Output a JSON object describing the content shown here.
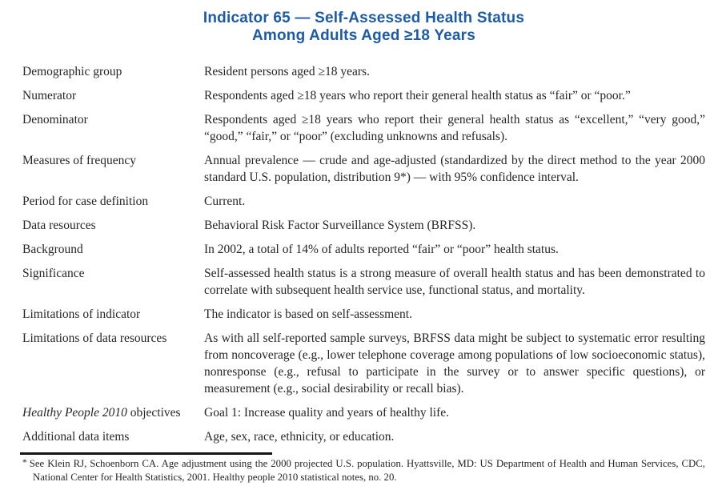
{
  "title": {
    "line1": "Indicator 65 — Self-Assessed Health Status",
    "line2": "Among Adults Aged ≥18 Years"
  },
  "colors": {
    "title_blue": "#1d5ba7",
    "body_text": "#262626",
    "rule": "#141414"
  },
  "rows": [
    {
      "label": "Demographic group",
      "text": "Resident persons aged ≥18 years."
    },
    {
      "label": "Numerator",
      "text": "Respondents aged ≥18 years who report their general health status as “fair” or “poor.”"
    },
    {
      "label": "Denominator",
      "text": "Respondents aged ≥18 years who report their general health status as “excellent,” “very good,” “good,” “fair,” or “poor” (excluding unknowns and refusals)."
    },
    {
      "label": "Measures of frequency",
      "text": "Annual prevalence — crude and age-adjusted (standardized by the direct method to the year 2000 standard U.S. population, distribution 9*) — with 95% confidence interval."
    },
    {
      "label": "Period for case definition",
      "text": "Current."
    },
    {
      "label": "Data resources",
      "text": "Behavioral Risk Factor Surveillance System (BRFSS)."
    },
    {
      "label": "Background",
      "text": "In 2002, a total of 14% of adults reported “fair” or “poor” health status."
    },
    {
      "label": "Significance",
      "text": "Self-assessed health status is a strong measure of overall health status and has been demonstrated to correlate with subsequent health service use, functional status, and mortality."
    },
    {
      "label": "Limitations of indicator",
      "text": "The indicator is based on self-assessment."
    },
    {
      "label": "Limitations of data resources",
      "text": "As with all self-reported sample surveys, BRFSS data might be subject to systematic error resulting from noncoverage (e.g., lower telephone coverage among populations of low socioeconomic status), nonresponse (e.g., refusal to participate in the survey or to answer specific questions), or measurement (e.g., social desirability or recall bias)."
    },
    {
      "label_italic": "Healthy People 2010",
      "label_rest": " objectives",
      "text": "Goal 1: Increase quality and years of healthy life."
    },
    {
      "label": "Additional data items",
      "text": "Age, sex, race, ethnicity, or education."
    }
  ],
  "footnote": {
    "marker": "*",
    "text": "See Klein RJ, Schoenborn CA. Age adjustment using the 2000 projected U.S. population. Hyattsville, MD: US Department of Health and Human Services, CDC, National Center for Health Statistics, 2001. Healthy people 2010 statistical notes, no. 20."
  }
}
